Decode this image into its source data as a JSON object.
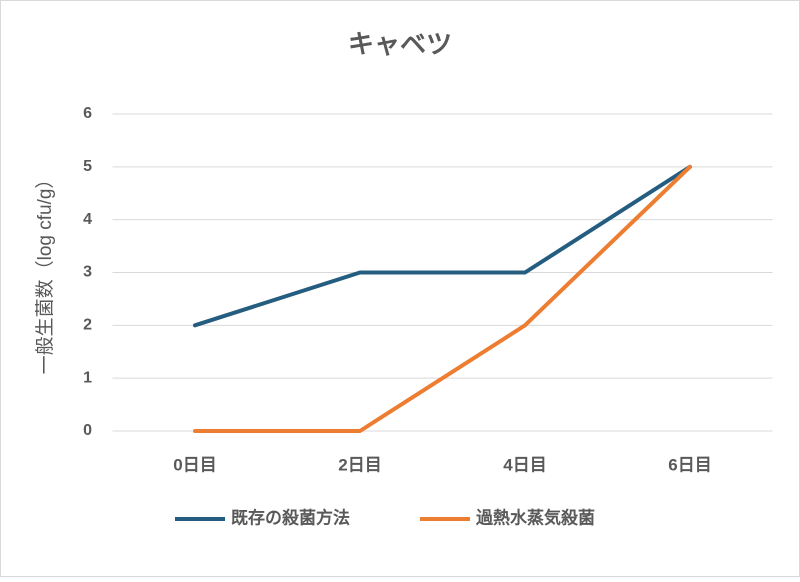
{
  "chart_data": {
    "type": "line",
    "title": "キャベツ",
    "y_label": "一般生菌数（log cfu/g）",
    "categories": [
      "0日目",
      "2日目",
      "4日目",
      "6日目"
    ],
    "series": [
      {
        "name": "既存の殺菌方法",
        "color": "#245d7f",
        "values": [
          2,
          3,
          3,
          5
        ]
      },
      {
        "name": "過熱水蒸気殺菌",
        "color": "#ed7d31",
        "values": [
          0,
          0,
          2,
          5
        ]
      }
    ],
    "ylim": [
      0,
      6
    ],
    "yticks": [
      0,
      1,
      2,
      3,
      4,
      5,
      6
    ],
    "grid": true,
    "legend": "bottom"
  }
}
